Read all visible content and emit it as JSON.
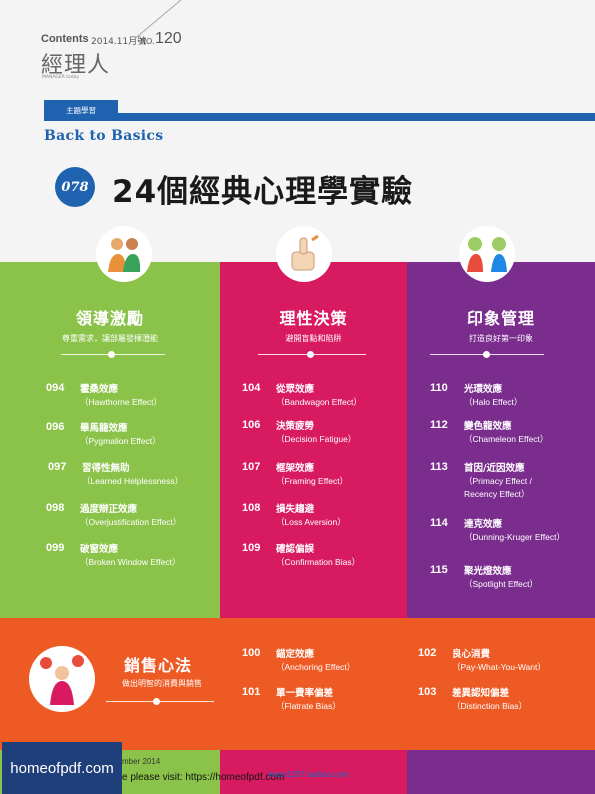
{
  "header": {
    "contents_label": "Contents",
    "date": "2014.11月號",
    "no_label": "NO.",
    "issue_number": "120",
    "magazine_title": "經理人",
    "magazine_subtitle": "MANAGER today"
  },
  "topic_tag": "主題學習",
  "section_title": "Back to Basics",
  "feature": {
    "page": "078",
    "title": "24個經典心理學實驗"
  },
  "categories": [
    {
      "title": "領導激勵",
      "subtitle": "尊重需求，讓部屬發揮潛能",
      "items": [
        {
          "page": "094",
          "zh": "霍桑效應",
          "en": "（Hawthorne Effect）"
        },
        {
          "page": "096",
          "zh": "畢馬龍效應",
          "en": "（Pygmalion Effect）"
        },
        {
          "page": "097",
          "zh": "習得性無助",
          "en": "（Learned Helplessness）"
        },
        {
          "page": "098",
          "zh": "過度辯正效應",
          "en": "（Overjustification Effect）"
        },
        {
          "page": "099",
          "zh": "破窗效應",
          "en": "（Broken Window Effect）"
        }
      ]
    },
    {
      "title": "理性決策",
      "subtitle": "避開盲點和陷阱",
      "items": [
        {
          "page": "104",
          "zh": "從眾效應",
          "en": "（Bandwagon Effect）"
        },
        {
          "page": "106",
          "zh": "決策疲勞",
          "en": "（Decision Fatigue）"
        },
        {
          "page": "107",
          "zh": "框架效應",
          "en": "（Framing Effect）"
        },
        {
          "page": "108",
          "zh": "損失趨避",
          "en": "（Loss Aversion）"
        },
        {
          "page": "109",
          "zh": "確認偏誤",
          "en": "（Confirmation Bias）"
        }
      ]
    },
    {
      "title": "印象管理",
      "subtitle": "打造良好第一印象",
      "items": [
        {
          "page": "110",
          "zh": "光環效應",
          "en": "（Halo Effect）"
        },
        {
          "page": "112",
          "zh": "變色龍效應",
          "en": "（Chameleon Effect）"
        },
        {
          "page": "113",
          "zh": "首因/近因效應",
          "en": "（Primacy Effect /",
          "en2": "Recency Effect）"
        },
        {
          "page": "114",
          "zh": "達克效應",
          "en": "（Dunning-Kruger Effect）"
        },
        {
          "page": "115",
          "zh": "聚光燈效應",
          "en": "（Spotlight Effect）"
        }
      ]
    }
  ],
  "sales": {
    "title": "銷售心法",
    "subtitle": "做出明智的消費與銷售",
    "items": [
      {
        "page": "100",
        "zh": "錨定效應",
        "en": "（Anchoring Effect）"
      },
      {
        "page": "101",
        "zh": "單一費率偏差",
        "en": "（Flatrate Bias）"
      },
      {
        "page": "102",
        "zh": "良心消費",
        "en": "（Pay-What-You-Want）"
      },
      {
        "page": "103",
        "zh": "差異認知偏差",
        "en": "（Distinction Bias）"
      }
    ]
  },
  "footer": {
    "logo": "homeofpdf.com",
    "date": "mber 2014",
    "visit": "e please visit: https://homeofpdf.com",
    "shop": "lease1207.taobao.com"
  },
  "colors": {
    "blue": "#1e62b0",
    "green": "#8bc34a",
    "pink": "#d81b60",
    "purple": "#7b2d8e",
    "orange": "#ee5a24"
  }
}
